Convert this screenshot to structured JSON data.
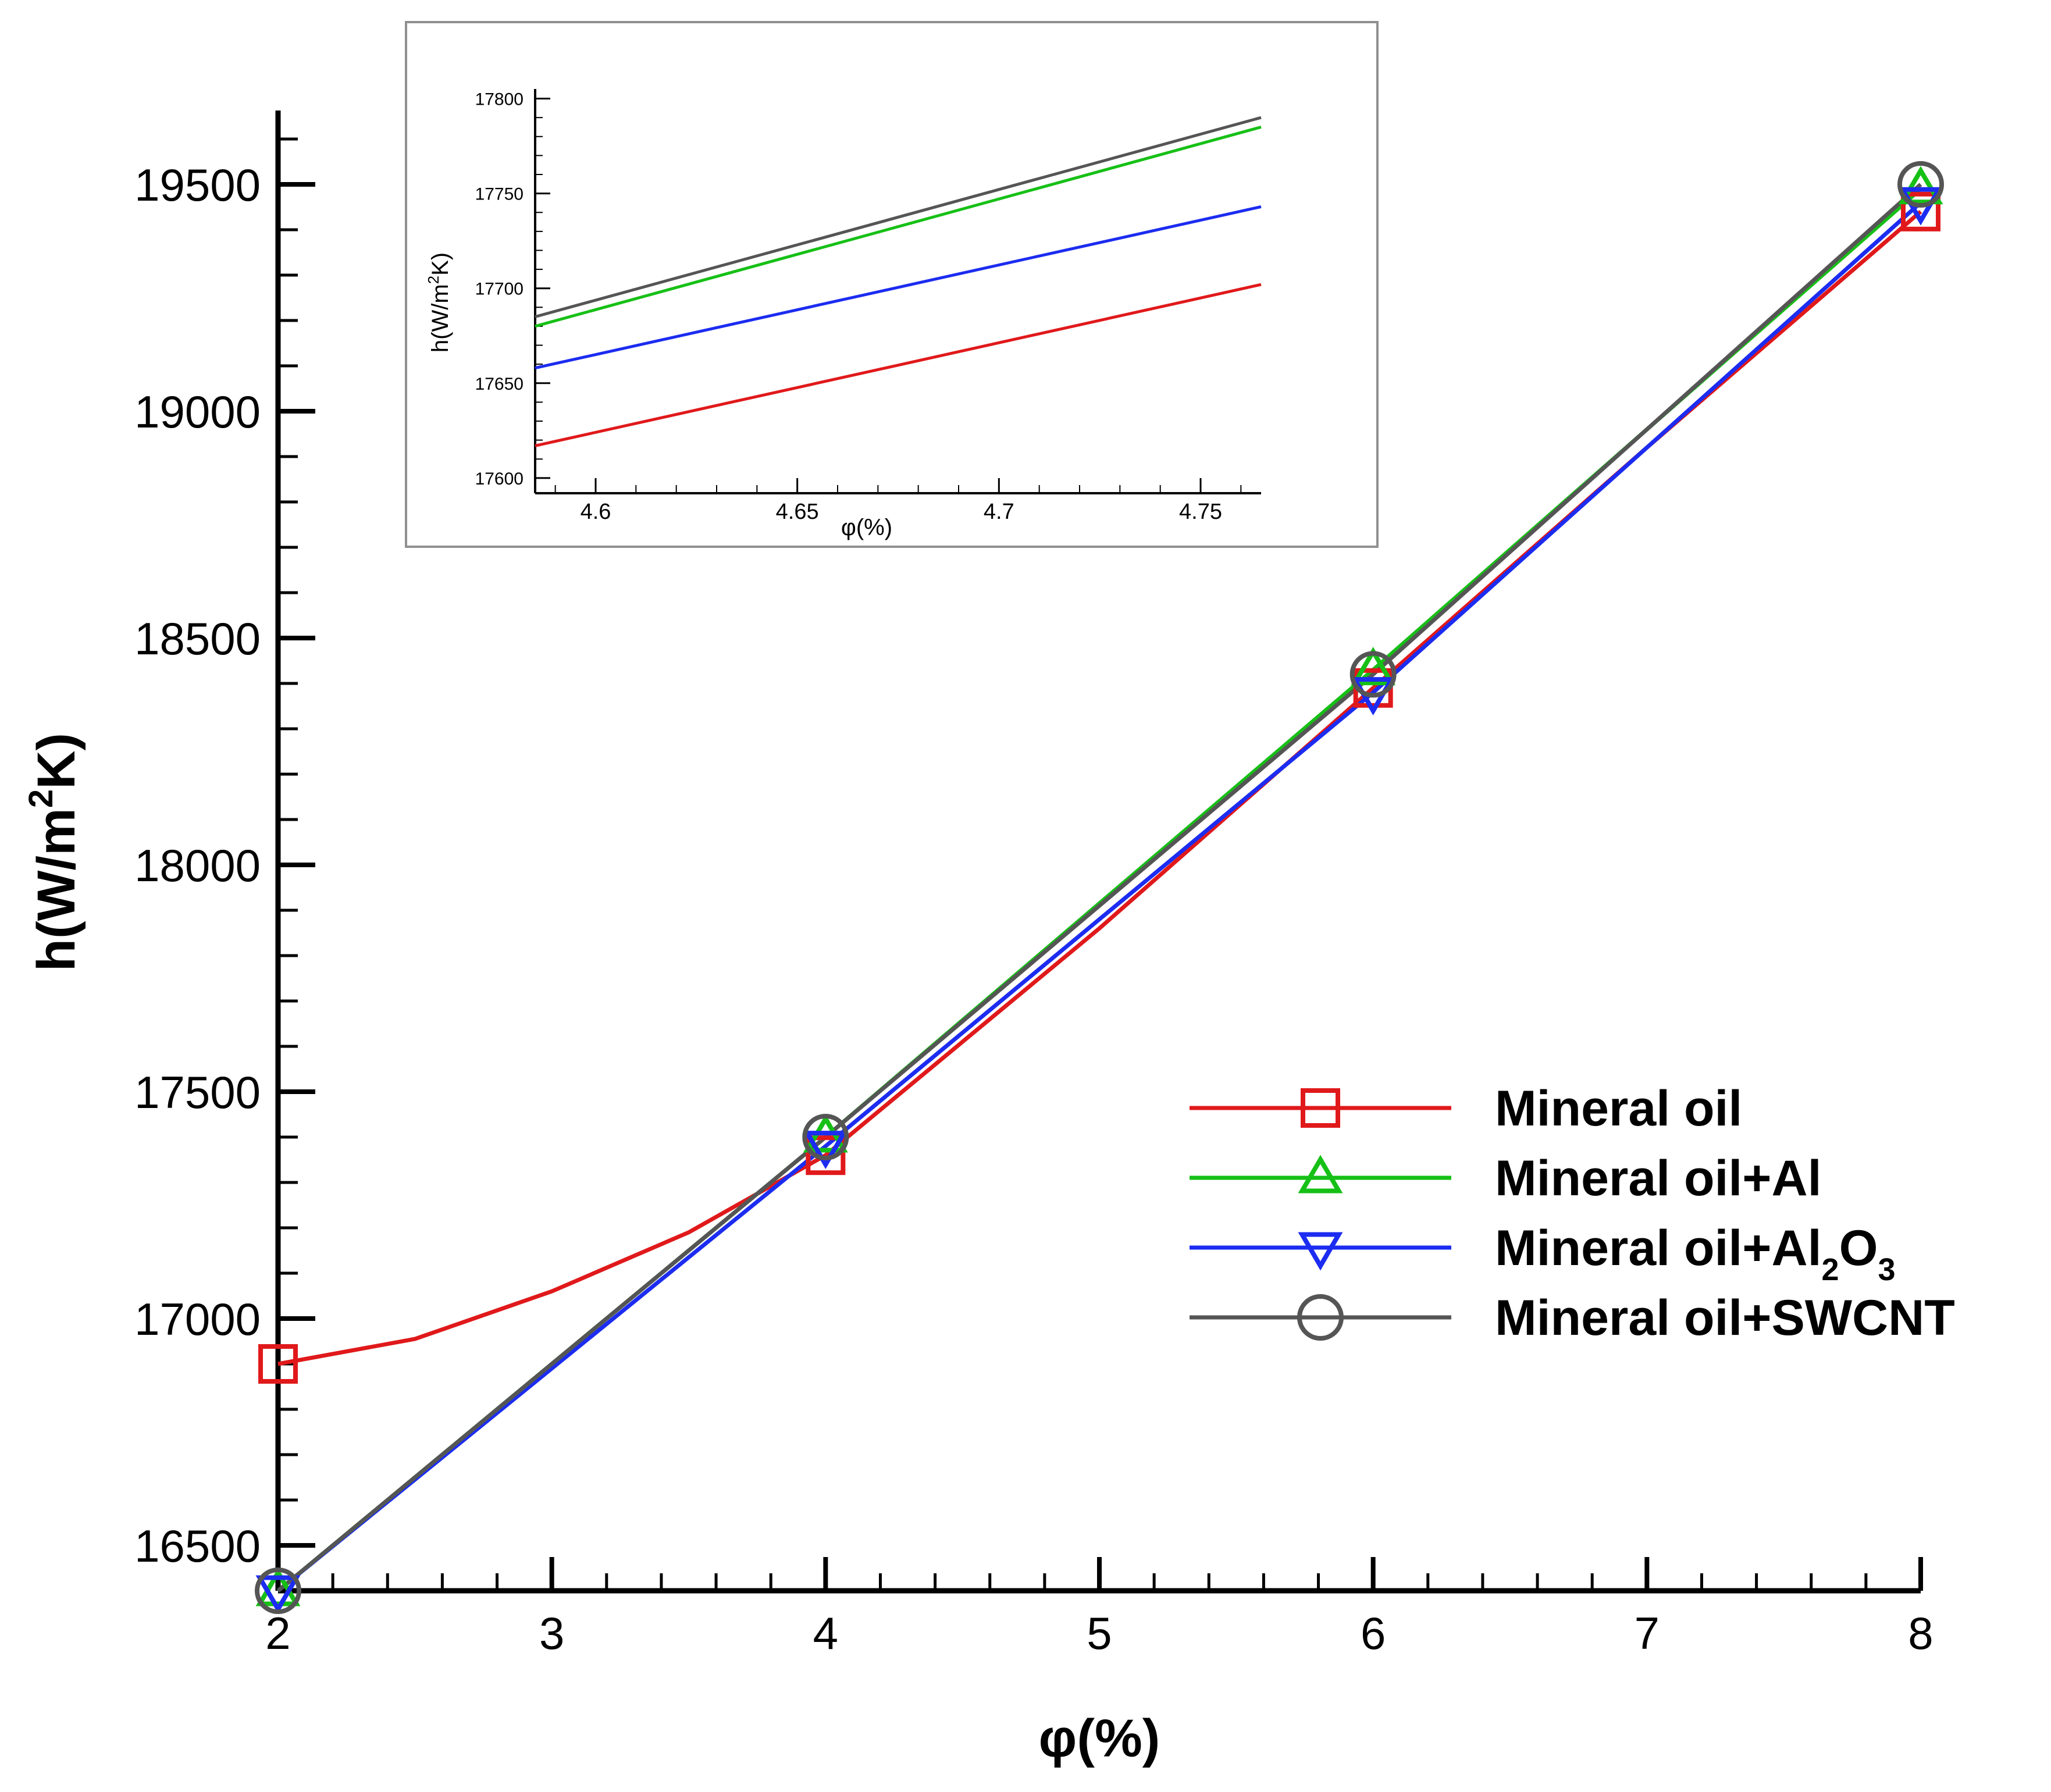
{
  "chart_data": [
    {
      "type": "line",
      "title": "",
      "xlabel": "φ(%)",
      "ylabel": "h(W/m²K)",
      "ylabel_parts": {
        "pre": "h(W/m",
        "sup": "2",
        "post": "K)"
      },
      "xlim": [
        2,
        8
      ],
      "ylim": [
        16400,
        19650
      ],
      "xticks": [
        2,
        3,
        4,
        5,
        6,
        7,
        8
      ],
      "yticks": [
        16500,
        17000,
        17500,
        18000,
        18500,
        19000,
        19500
      ],
      "x": [
        2,
        4,
        6,
        8
      ],
      "series": [
        {
          "name": "Mineral oil",
          "label_parts": {
            "base": "Mineral oil"
          },
          "color": "#e0191b",
          "marker": "square",
          "values": [
            16900,
            17360,
            18390,
            19440
          ],
          "curve": [
            [
              2,
              16900
            ],
            [
              2.5,
              16955
            ],
            [
              3,
              17060
            ],
            [
              3.5,
              17190
            ],
            [
              4,
              17360
            ],
            [
              5,
              17860
            ],
            [
              6,
              18390
            ],
            [
              7,
              18920
            ],
            [
              8,
              19440
            ]
          ]
        },
        {
          "name": "Mineral oil+Al",
          "label_parts": {
            "base": "Mineral oil+Al"
          },
          "color": "#16c016",
          "marker": "triangle-up",
          "values": [
            16400,
            17400,
            18430,
            19490
          ],
          "curve": [
            [
              2,
              16400
            ],
            [
              4,
              17400
            ],
            [
              6,
              18430
            ],
            [
              8,
              19490
            ]
          ]
        },
        {
          "name": "Mineral oil+Al2O3",
          "label_parts": {
            "base": "Mineral oil+Al",
            "sub1": "2",
            "mid": "O",
            "sub2": "3"
          },
          "color": "#1c2cf0",
          "marker": "triangle-down",
          "values": [
            16400,
            17380,
            18380,
            19460
          ],
          "curve": [
            [
              2,
              16400
            ],
            [
              4,
              17380
            ],
            [
              6,
              18380
            ],
            [
              8,
              19460
            ]
          ]
        },
        {
          "name": "Mineral oil+SWCNT",
          "label_parts": {
            "base": "Mineral oil+SWCNT"
          },
          "color": "#555555",
          "marker": "circle",
          "values": [
            16400,
            17400,
            18420,
            19500
          ],
          "curve": [
            [
              2,
              16400
            ],
            [
              4,
              17400
            ],
            [
              6,
              18420
            ],
            [
              8,
              19500
            ]
          ]
        }
      ],
      "legend_position": "center-right"
    },
    {
      "type": "line",
      "title": "inset",
      "xlabel": "φ(%)",
      "ylabel": "h(W/m²K)",
      "ylabel_parts": {
        "pre": "h(W/m",
        "sup": "2",
        "post": "K)"
      },
      "xlim": [
        4.585,
        4.765
      ],
      "ylim": [
        17592,
        17802
      ],
      "xticks": [
        4.6,
        4.65,
        4.7,
        4.75
      ],
      "xtick_labels": [
        "4.6",
        "4.65",
        "4.7",
        "4.75"
      ],
      "yticks": [
        17600,
        17650,
        17700,
        17750,
        17800
      ],
      "series": [
        {
          "name": "Mineral oil",
          "color": "#e0191b",
          "points": [
            [
              4.585,
              17617
            ],
            [
              4.765,
              17702
            ]
          ]
        },
        {
          "name": "Mineral oil+Al",
          "color": "#16c016",
          "points": [
            [
              4.585,
              17680
            ],
            [
              4.765,
              17785
            ]
          ]
        },
        {
          "name": "Mineral oil+Al2O3",
          "color": "#1c2cf0",
          "points": [
            [
              4.585,
              17658
            ],
            [
              4.765,
              17743
            ]
          ]
        },
        {
          "name": "Mineral oil+SWCNT",
          "color": "#555555",
          "points": [
            [
              4.585,
              17685
            ],
            [
              4.765,
              17790
            ]
          ]
        }
      ]
    }
  ]
}
